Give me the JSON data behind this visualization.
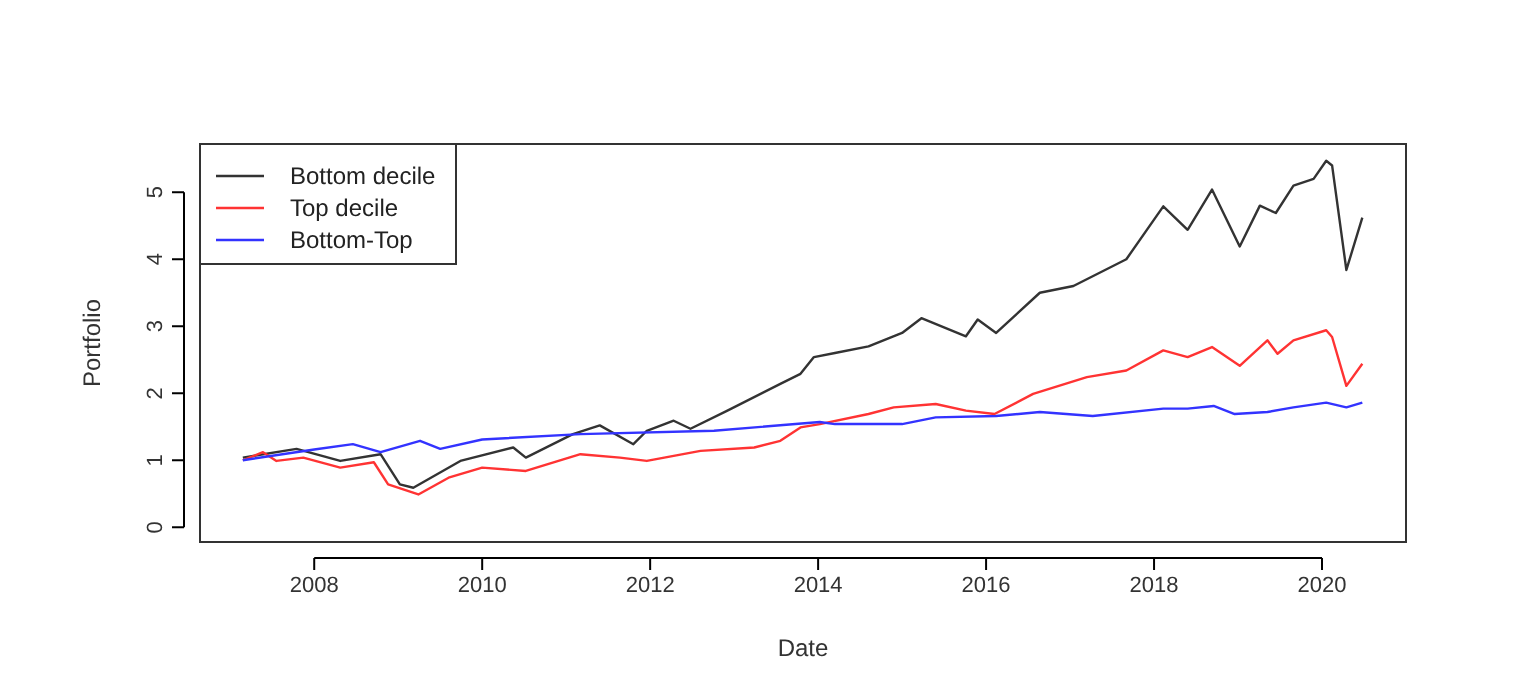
{
  "chart_data": {
    "type": "line",
    "xlabel": "Date",
    "ylabel": "Portfolio",
    "xlim": [
      2006.64,
      2021.0
    ],
    "ylim": [
      -0.22,
      5.72
    ],
    "xticks": [
      2008,
      2010,
      2012,
      2014,
      2016,
      2018,
      2020
    ],
    "yticks": [
      0,
      1,
      2,
      3,
      4,
      5
    ],
    "grid": false,
    "legend": "top left",
    "marker": "none",
    "line_style": "solid",
    "series": [
      {
        "name": "Bottom decile",
        "color": "#333333",
        "x": [
          2007.15,
          2007.79,
          2008.31,
          2008.79,
          2009.02,
          2009.18,
          2009.74,
          2010.37,
          2010.52,
          2011.08,
          2011.4,
          2011.8,
          2011.96,
          2012.28,
          2012.48,
          2012.92,
          2013.55,
          2013.79,
          2013.95,
          2014.2,
          2014.6,
          2015.0,
          2015.23,
          2015.76,
          2015.9,
          2016.12,
          2016.64,
          2017.04,
          2017.67,
          2018.11,
          2018.4,
          2018.69,
          2019.02,
          2019.26,
          2019.45,
          2019.66,
          2019.9,
          2020.05,
          2020.12,
          2020.29,
          2020.48
        ],
        "values": [
          1.04,
          1.17,
          0.99,
          1.09,
          0.64,
          0.59,
          0.99,
          1.19,
          1.04,
          1.39,
          1.52,
          1.24,
          1.44,
          1.59,
          1.47,
          1.74,
          2.14,
          2.29,
          2.54,
          2.6,
          2.7,
          2.9,
          3.12,
          2.85,
          3.1,
          2.9,
          3.5,
          3.6,
          4.0,
          4.79,
          4.44,
          5.04,
          4.19,
          4.8,
          4.69,
          5.1,
          5.2,
          5.47,
          5.4,
          3.84,
          4.62
        ]
      },
      {
        "name": "Top decile",
        "color": "#ff3333",
        "x": [
          2007.15,
          2007.39,
          2007.55,
          2007.87,
          2008.31,
          2008.71,
          2008.88,
          2009.24,
          2009.6,
          2010.0,
          2010.52,
          2011.17,
          2011.64,
          2011.96,
          2012.6,
          2013.24,
          2013.55,
          2013.79,
          2014.02,
          2014.6,
          2014.9,
          2015.4,
          2015.76,
          2016.1,
          2016.56,
          2017.2,
          2017.67,
          2018.11,
          2018.4,
          2018.69,
          2019.02,
          2019.35,
          2019.47,
          2019.66,
          2020.05,
          2020.12,
          2020.29,
          2020.48
        ],
        "values": [
          1.0,
          1.12,
          0.99,
          1.04,
          0.89,
          0.97,
          0.64,
          0.49,
          0.74,
          0.89,
          0.84,
          1.09,
          1.04,
          0.99,
          1.14,
          1.19,
          1.29,
          1.49,
          1.54,
          1.69,
          1.79,
          1.84,
          1.74,
          1.69,
          1.99,
          2.24,
          2.34,
          2.64,
          2.54,
          2.69,
          2.41,
          2.79,
          2.59,
          2.79,
          2.94,
          2.84,
          2.11,
          2.44
        ]
      },
      {
        "name": "Bottom-Top",
        "color": "#3333ff",
        "x": [
          2007.15,
          2008.0,
          2008.46,
          2008.79,
          2009.26,
          2009.5,
          2010.0,
          2011.17,
          2012.76,
          2014.02,
          2014.2,
          2015.0,
          2015.4,
          2016.12,
          2016.64,
          2017.27,
          2018.11,
          2018.4,
          2018.71,
          2018.96,
          2019.35,
          2019.66,
          2020.05,
          2020.29,
          2020.48
        ],
        "values": [
          1.0,
          1.16,
          1.24,
          1.12,
          1.29,
          1.17,
          1.31,
          1.39,
          1.44,
          1.57,
          1.54,
          1.54,
          1.64,
          1.66,
          1.72,
          1.66,
          1.77,
          1.77,
          1.81,
          1.69,
          1.72,
          1.79,
          1.86,
          1.79,
          1.86
        ]
      }
    ]
  }
}
